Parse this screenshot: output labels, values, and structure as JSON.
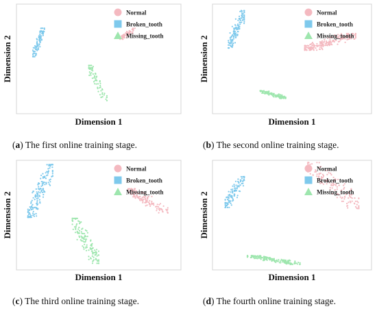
{
  "colors": {
    "normal": "#f4b9c0",
    "broken_tooth": "#7ec9ec",
    "missing_tooth": "#9ee6ae",
    "frame": "#d4d4d4"
  },
  "legend_placement": "top-right",
  "chart_data": [
    {
      "type": "scatter",
      "panel": "a",
      "caption_letter": "a",
      "caption_text": " The first online training stage.",
      "xlabel": "Dimension 1",
      "ylabel": "Dimension 2",
      "xlim": [
        0,
        1
      ],
      "ylim": [
        0,
        1
      ],
      "grid": false,
      "legend": [
        "Normal",
        "Broken_tooth",
        "Missing_tooth"
      ],
      "series": [
        {
          "name": "Normal",
          "marker": "circle",
          "clusters": [
            {
              "x": [
                0.63,
                0.72
              ],
              "y": [
                0.68,
                0.78
              ],
              "n": 70
            }
          ]
        },
        {
          "name": "Broken_tooth",
          "marker": "square",
          "clusters": [
            {
              "x": [
                0.1,
                0.17
              ],
              "y": [
                0.52,
                0.78
              ],
              "n": 90
            }
          ]
        },
        {
          "name": "Missing_tooth",
          "marker": "triangle",
          "clusters": [
            {
              "x": [
                0.44,
                0.55
              ],
              "y": [
                0.12,
                0.44
              ],
              "n": 70
            }
          ]
        }
      ]
    },
    {
      "type": "scatter",
      "panel": "b",
      "caption_letter": "b",
      "caption_text": " The second online training stage.",
      "xlabel": "Dimension 1",
      "ylabel": "Dimension 2",
      "xlim": [
        0,
        1
      ],
      "ylim": [
        0,
        1
      ],
      "grid": false,
      "legend": [
        "Normal",
        "Broken_tooth",
        "Missing_tooth"
      ],
      "series": [
        {
          "name": "Normal",
          "marker": "circle",
          "clusters": [
            {
              "x": [
                0.58,
                0.9
              ],
              "y": [
                0.58,
                0.73
              ],
              "n": 220
            }
          ]
        },
        {
          "name": "Broken_tooth",
          "marker": "square",
          "clusters": [
            {
              "x": [
                0.1,
                0.2
              ],
              "y": [
                0.6,
                0.94
              ],
              "n": 130
            }
          ]
        },
        {
          "name": "Missing_tooth",
          "marker": "triangle",
          "clusters": [
            {
              "x": [
                0.3,
                0.46
              ],
              "y": [
                0.14,
                0.21
              ],
              "n": 120
            }
          ]
        }
      ]
    },
    {
      "type": "scatter",
      "panel": "c",
      "caption_letter": "c",
      "caption_text": " The third online training stage.",
      "xlabel": "Dimension 1",
      "ylabel": "Dimension 2",
      "xlim": [
        0,
        1
      ],
      "ylim": [
        0,
        1
      ],
      "grid": false,
      "legend": [
        "Normal",
        "Broken_tooth",
        "Missing_tooth"
      ],
      "series": [
        {
          "name": "Normal",
          "marker": "circle",
          "clusters": [
            {
              "x": [
                0.68,
                0.92
              ],
              "y": [
                0.52,
                0.74
              ],
              "n": 130
            }
          ]
        },
        {
          "name": "Broken_tooth",
          "marker": "square",
          "clusters": [
            {
              "x": [
                0.07,
                0.22
              ],
              "y": [
                0.48,
                0.96
              ],
              "n": 170
            }
          ]
        },
        {
          "name": "Missing_tooth",
          "marker": "triangle",
          "clusters": [
            {
              "x": [
                0.34,
                0.5
              ],
              "y": [
                0.06,
                0.47
              ],
              "n": 130
            }
          ]
        }
      ]
    },
    {
      "type": "scatter",
      "panel": "d",
      "caption_letter": "d",
      "caption_text": " The fourth online training stage.",
      "xlabel": "Dimension 1",
      "ylabel": "Dimension 2",
      "xlim": [
        0,
        1
      ],
      "ylim": [
        0,
        1
      ],
      "grid": false,
      "legend": [
        "Normal",
        "Broken_tooth",
        "Missing_tooth"
      ],
      "series": [
        {
          "name": "Normal",
          "marker": "circle",
          "clusters": [
            {
              "x": [
                0.6,
                0.92
              ],
              "y": [
                0.56,
                0.98
              ],
              "n": 140
            }
          ]
        },
        {
          "name": "Broken_tooth",
          "marker": "square",
          "clusters": [
            {
              "x": [
                0.08,
                0.2
              ],
              "y": [
                0.57,
                0.85
              ],
              "n": 120
            }
          ]
        },
        {
          "name": "Missing_tooth",
          "marker": "triangle",
          "clusters": [
            {
              "x": [
                0.22,
                0.55
              ],
              "y": [
                0.05,
                0.13
              ],
              "n": 180
            }
          ]
        }
      ]
    }
  ]
}
